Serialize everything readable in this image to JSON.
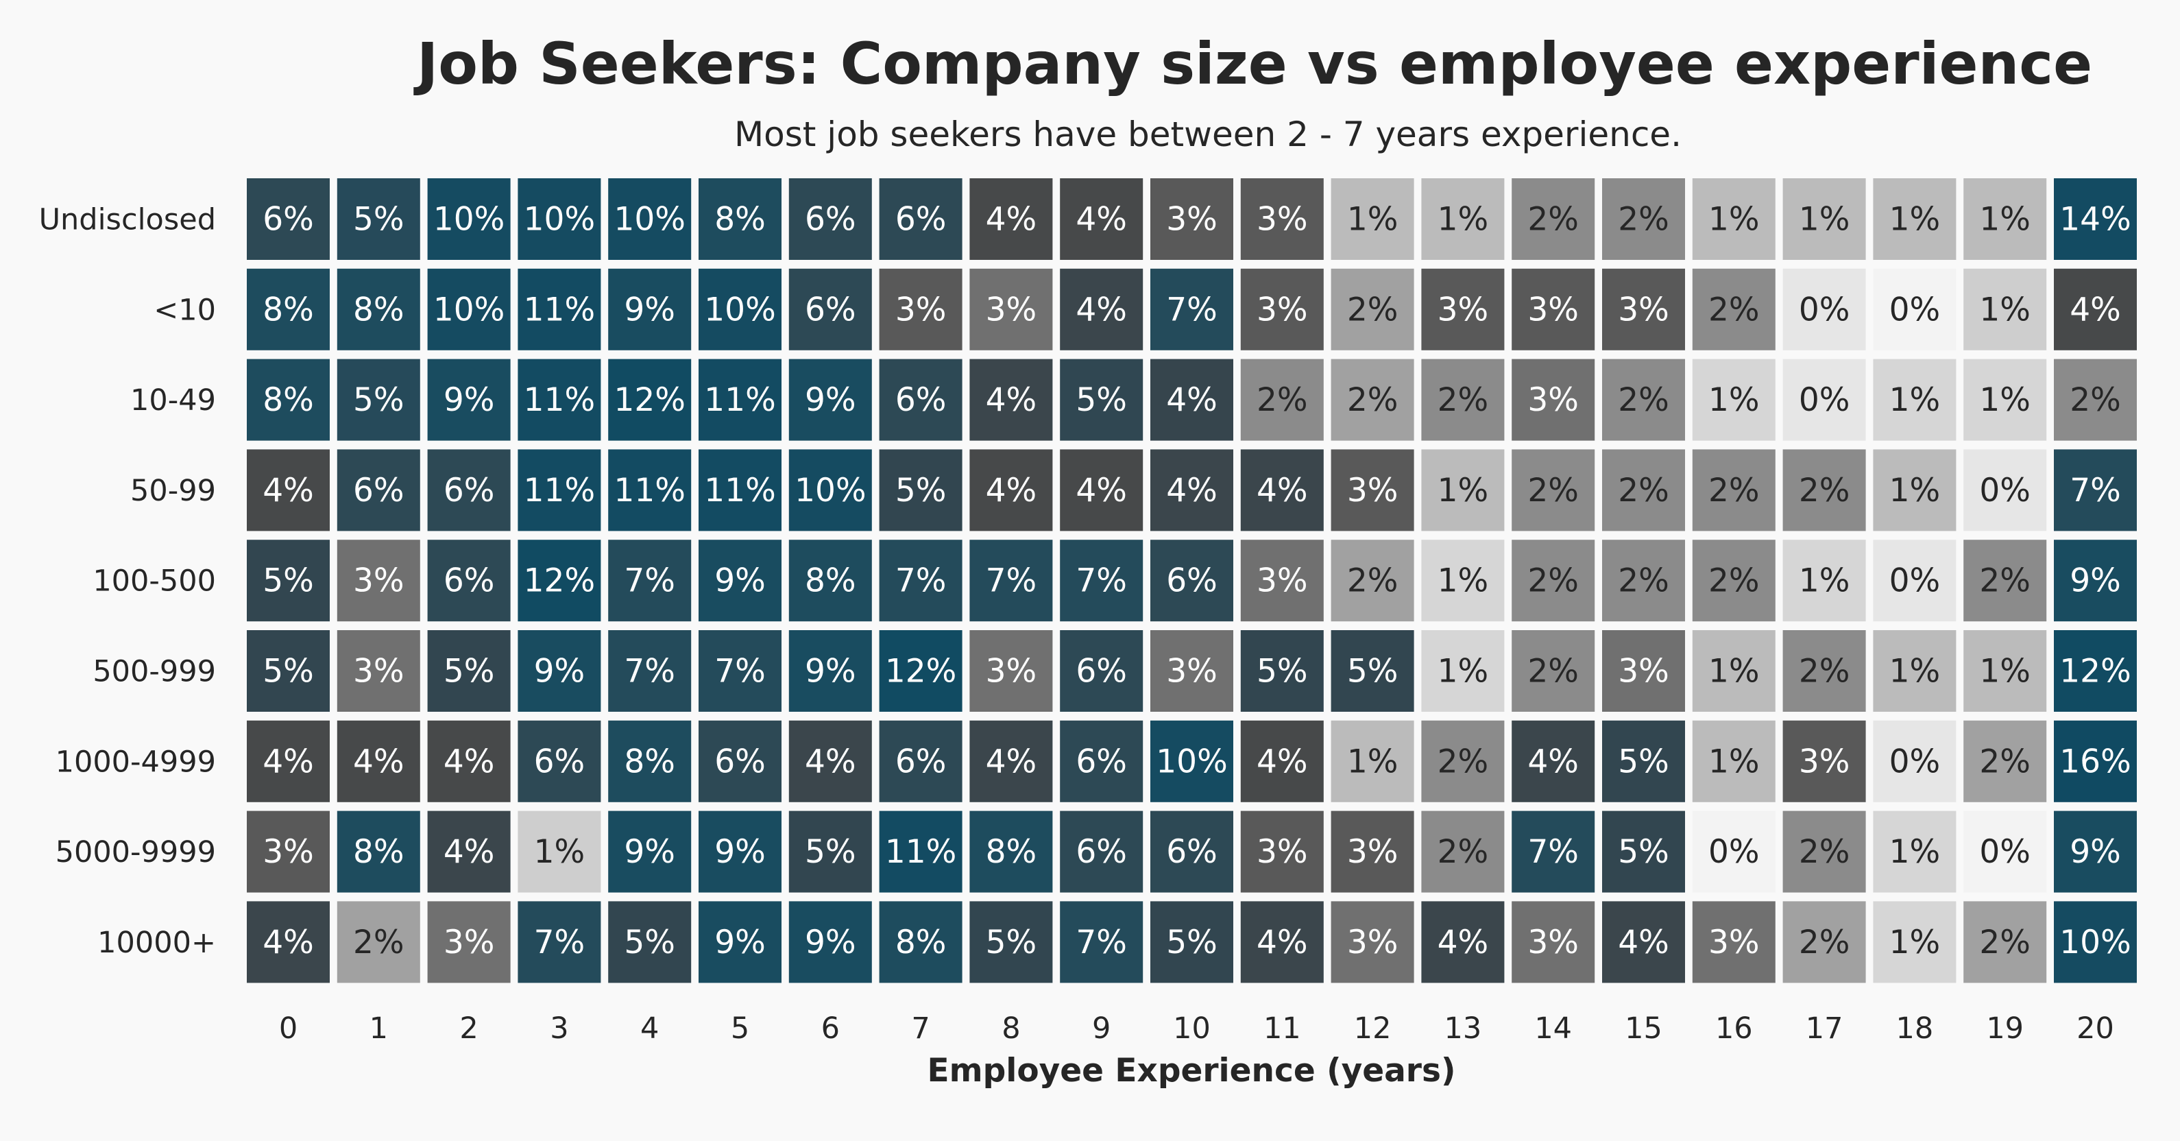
{
  "chart_data": {
    "type": "heatmap",
    "title": "Job Seekers: Company size vs employee experience",
    "subtitle": "Most job seekers have between 2 - 7 years experience.",
    "xlabel": "Employee Experience (years)",
    "ylabel": "",
    "x_categories": [
      "0",
      "1",
      "2",
      "3",
      "4",
      "5",
      "6",
      "7",
      "8",
      "9",
      "10",
      "11",
      "12",
      "13",
      "14",
      "15",
      "16",
      "17",
      "18",
      "19",
      "20"
    ],
    "y_categories": [
      "Undisclosed",
      "<10",
      "10-49",
      "50-99",
      "100-500",
      "500-999",
      "1000-4999",
      "5000-9999",
      "10000+"
    ],
    "value_unit": "%",
    "values": [
      [
        6,
        5,
        10,
        10,
        10,
        8,
        6,
        6,
        4,
        4,
        3,
        3,
        1,
        1,
        2,
        2,
        1,
        1,
        1,
        1,
        14
      ],
      [
        8,
        8,
        10,
        11,
        9,
        10,
        6,
        3,
        3,
        4,
        7,
        3,
        2,
        3,
        3,
        3,
        2,
        0,
        0,
        1,
        4
      ],
      [
        8,
        5,
        9,
        11,
        12,
        11,
        9,
        6,
        4,
        5,
        4,
        2,
        2,
        2,
        3,
        2,
        1,
        0,
        1,
        1,
        2
      ],
      [
        4,
        6,
        6,
        11,
        11,
        11,
        10,
        5,
        4,
        4,
        4,
        4,
        3,
        1,
        2,
        2,
        2,
        2,
        1,
        0,
        7
      ],
      [
        5,
        3,
        6,
        12,
        7,
        9,
        8,
        7,
        7,
        7,
        6,
        3,
        2,
        1,
        2,
        2,
        2,
        1,
        0,
        2,
        9
      ],
      [
        5,
        3,
        5,
        9,
        7,
        7,
        9,
        12,
        3,
        6,
        3,
        5,
        5,
        1,
        2,
        3,
        1,
        2,
        1,
        1,
        12
      ],
      [
        4,
        4,
        4,
        6,
        8,
        6,
        4,
        6,
        4,
        6,
        10,
        4,
        1,
        2,
        4,
        5,
        1,
        3,
        0,
        2,
        16
      ],
      [
        3,
        8,
        4,
        1,
        9,
        9,
        5,
        11,
        8,
        6,
        6,
        3,
        3,
        2,
        7,
        5,
        0,
        2,
        1,
        0,
        9
      ],
      [
        4,
        2,
        3,
        7,
        5,
        9,
        9,
        8,
        5,
        7,
        5,
        4,
        3,
        4,
        3,
        4,
        3,
        2,
        1,
        2,
        10
      ]
    ],
    "shades": [
      [
        0.72,
        0.78,
        0.93,
        0.93,
        0.93,
        0.85,
        0.72,
        0.72,
        0.52,
        0.52,
        0.46,
        0.46,
        0.2,
        0.2,
        0.33,
        0.33,
        0.2,
        0.2,
        0.2,
        0.2,
        0.95
      ],
      [
        0.85,
        0.85,
        0.93,
        0.95,
        0.89,
        0.93,
        0.72,
        0.46,
        0.4,
        0.59,
        0.8,
        0.46,
        0.27,
        0.46,
        0.46,
        0.46,
        0.33,
        0.07,
        0.02,
        0.15,
        0.52
      ],
      [
        0.85,
        0.78,
        0.89,
        0.95,
        0.96,
        0.95,
        0.89,
        0.72,
        0.59,
        0.68,
        0.62,
        0.33,
        0.27,
        0.33,
        0.4,
        0.33,
        0.13,
        0.07,
        0.13,
        0.13,
        0.33
      ],
      [
        0.52,
        0.72,
        0.72,
        0.95,
        0.95,
        0.95,
        0.93,
        0.66,
        0.52,
        0.52,
        0.59,
        0.59,
        0.46,
        0.2,
        0.33,
        0.33,
        0.33,
        0.33,
        0.2,
        0.07,
        0.8
      ],
      [
        0.66,
        0.4,
        0.72,
        0.96,
        0.8,
        0.89,
        0.85,
        0.8,
        0.8,
        0.8,
        0.72,
        0.4,
        0.27,
        0.13,
        0.33,
        0.33,
        0.33,
        0.13,
        0.07,
        0.33,
        0.89
      ],
      [
        0.66,
        0.4,
        0.66,
        0.89,
        0.8,
        0.8,
        0.89,
        0.96,
        0.4,
        0.72,
        0.4,
        0.66,
        0.66,
        0.13,
        0.33,
        0.4,
        0.2,
        0.33,
        0.2,
        0.2,
        0.96
      ],
      [
        0.52,
        0.52,
        0.52,
        0.72,
        0.85,
        0.72,
        0.59,
        0.72,
        0.59,
        0.72,
        0.93,
        0.52,
        0.2,
        0.33,
        0.59,
        0.66,
        0.2,
        0.46,
        0.07,
        0.27,
        0.97
      ],
      [
        0.46,
        0.85,
        0.59,
        0.15,
        0.89,
        0.89,
        0.66,
        0.95,
        0.85,
        0.72,
        0.72,
        0.46,
        0.46,
        0.33,
        0.8,
        0.66,
        0.02,
        0.33,
        0.13,
        0.02,
        0.89
      ],
      [
        0.59,
        0.27,
        0.4,
        0.8,
        0.66,
        0.89,
        0.89,
        0.85,
        0.66,
        0.8,
        0.66,
        0.59,
        0.4,
        0.59,
        0.4,
        0.59,
        0.4,
        0.27,
        0.13,
        0.27,
        0.93
      ]
    ],
    "colors": {
      "background": "#f9f9f9",
      "scale": [
        "#f8f8f8",
        "#d8d8d8",
        "#a8a8a8",
        "#7a7a7a",
        "#4a4a4a",
        "#35454d",
        "#2a4a58",
        "#1b4c60",
        "#0d4a63"
      ],
      "label_light": "#ffffff",
      "label_dark": "#262626"
    },
    "grid": false,
    "legend": "none"
  }
}
